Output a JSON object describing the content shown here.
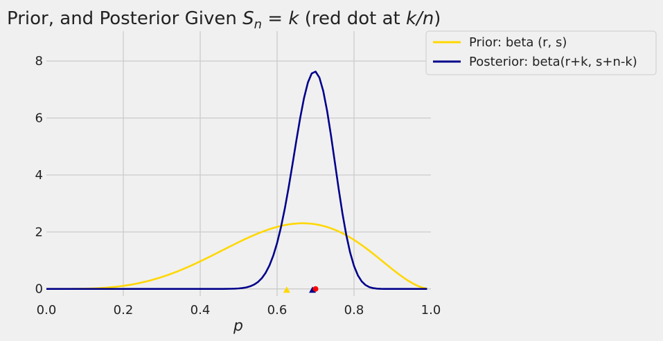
{
  "chart_data": {
    "type": "line",
    "title": {
      "prefix": "Prior, and Posterior Given ",
      "math1_base": "S",
      "math1_sub": "n",
      "math1_eq": " = ",
      "math1_k": "k",
      "middle": " (red dot at ",
      "math2": "k/n",
      "suffix": ")"
    },
    "xlabel": "p",
    "ylabel": "",
    "xlim": [
      0,
      1
    ],
    "ylim": [
      -0.25,
      9.05
    ],
    "xticks": [
      0,
      0.2,
      0.4,
      0.6,
      0.8,
      1.0
    ],
    "xtick_labels": [
      "0.0",
      "0.2",
      "0.4",
      "0.6",
      "0.8",
      "1.0"
    ],
    "yticks": [
      0,
      2,
      4,
      6,
      8
    ],
    "ytick_labels": [
      "0",
      "2",
      "4",
      "6",
      "8"
    ],
    "grid": true,
    "legend_placement": "outside top-right",
    "series": [
      {
        "name": "Prior: beta (r, s)",
        "color": "#ffd700",
        "distribution": {
          "family": "beta",
          "a": 5,
          "b": 3
        },
        "marker_triangle_x": 0.625
      },
      {
        "name": "Posterior: beta(r+k, s+n-k)",
        "color": "#00008b",
        "distribution": {
          "family": "beta",
          "a": 54,
          "b": 24
        },
        "marker_triangle_x": 0.692
      }
    ],
    "red_dot": {
      "x": 0.7,
      "y": 0,
      "color": "#ff0000"
    }
  }
}
